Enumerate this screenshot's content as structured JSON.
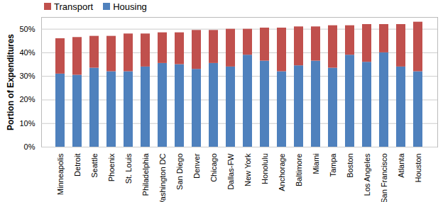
{
  "chart_data": {
    "type": "bar",
    "stacked": true,
    "legend": "top",
    "y_label": "Portion of Expenditures",
    "categories": [
      "Minneapolis",
      "Detroit",
      "Seattle",
      "Phoenix",
      "St. Louis",
      "Philadelphia",
      "Washington DC",
      "San Diego",
      "Denver",
      "Chicago",
      "Dallas-FW",
      "New York",
      "Honolulu",
      "Anchorage",
      "Baltimore",
      "Miami",
      "Tampa",
      "Boston",
      "Los Angeles",
      "San Francisco",
      "Atlanta",
      "Houston"
    ],
    "series": [
      {
        "name": "Housing",
        "color": "#4f81bd",
        "values": [
          31,
          30.5,
          33.5,
          32,
          32,
          34,
          35.5,
          35,
          33,
          35.5,
          34,
          39,
          36.5,
          32,
          34.5,
          36.5,
          33.5,
          39,
          36,
          40,
          34,
          32
        ]
      },
      {
        "name": "Transport",
        "color": "#c0504d",
        "values": [
          15,
          16,
          13.5,
          15,
          16,
          14,
          13,
          13.5,
          16.5,
          14,
          16,
          11,
          14,
          18.5,
          16.5,
          14.5,
          18,
          12.5,
          16,
          12,
          18,
          21
        ]
      }
    ],
    "ylim": [
      0,
      55
    ],
    "yticks": [
      {
        "value": 0,
        "label": "0%"
      },
      {
        "value": 10,
        "label": "10%"
      },
      {
        "value": 20,
        "label": "20%"
      },
      {
        "value": 30,
        "label": "30%"
      },
      {
        "value": 40,
        "label": "40%"
      },
      {
        "value": 50,
        "label": "50%"
      }
    ]
  }
}
